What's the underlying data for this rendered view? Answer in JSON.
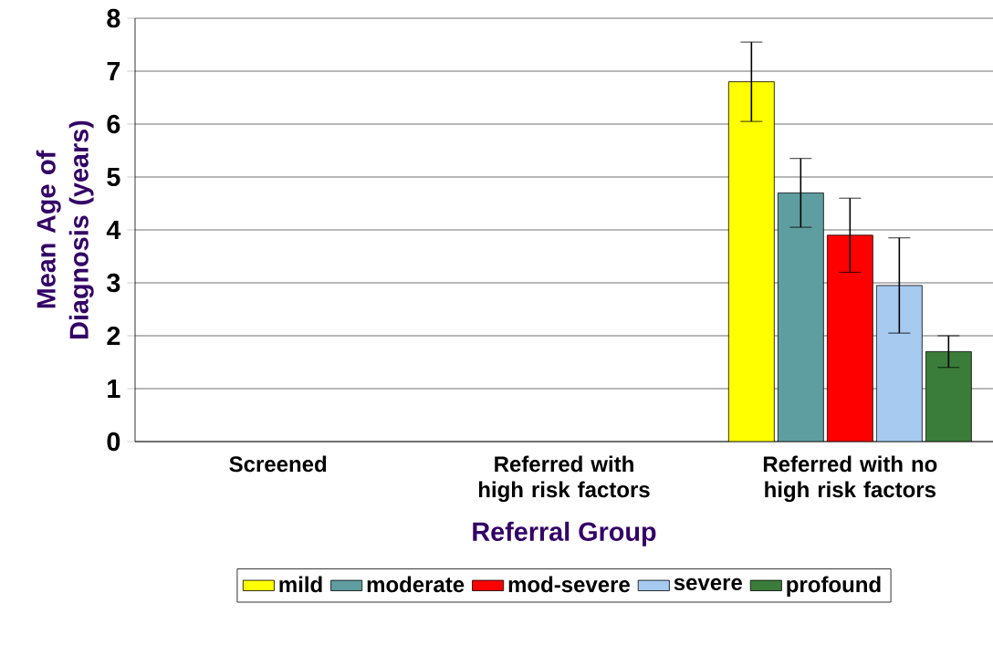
{
  "chart_data": {
    "type": "bar",
    "xlabel": "Referral Group",
    "ylabel": "Mean Age of Diagnosis (years)",
    "categories": [
      "Screened",
      "Referred with high risk factors",
      "Referred with no high risk factors"
    ],
    "series": [
      {
        "name": "mild",
        "color": "#ffff00",
        "values": [
          null,
          null,
          6.8
        ],
        "errors": [
          null,
          null,
          0.75
        ]
      },
      {
        "name": "moderate",
        "color": "#5f9ea0",
        "values": [
          null,
          null,
          4.7
        ],
        "errors": [
          null,
          null,
          0.65
        ]
      },
      {
        "name": "mod-severe",
        "color": "#ff0000",
        "values": [
          null,
          null,
          3.9
        ],
        "errors": [
          null,
          null,
          0.7
        ]
      },
      {
        "name": "severe",
        "color": "#a6caf0",
        "values": [
          null,
          null,
          2.95
        ],
        "errors": [
          null,
          null,
          0.9
        ]
      },
      {
        "name": "profound",
        "color": "#3a7d3a",
        "values": [
          null,
          null,
          1.7
        ],
        "errors": [
          null,
          null,
          0.3
        ]
      }
    ],
    "ylim": [
      0,
      8
    ],
    "yticks": [
      0,
      1,
      2,
      3,
      4,
      5,
      6,
      7,
      8
    ],
    "grid": "y",
    "legend": "bottom"
  }
}
